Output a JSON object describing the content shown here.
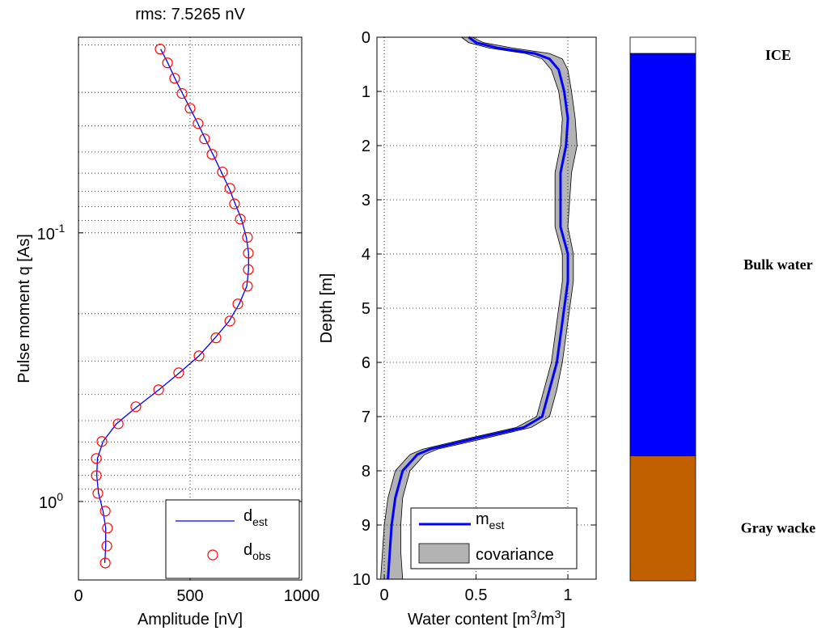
{
  "chart_data": [
    {
      "type": "scatter",
      "title": "rms: 7.5265 nV",
      "xlabel": "Amplitude [nV]",
      "ylabel": "Pulse moment q [As]",
      "xlim": [
        0,
        1000
      ],
      "xticks": [
        0,
        500,
        1000
      ],
      "ylim": [
        0.0187,
        1.96
      ],
      "log_y": true,
      "y_reversed": true,
      "yticks": [
        {
          "value": 0.1,
          "label": "10",
          "exponent": "-1"
        },
        {
          "value": 1,
          "label": "10",
          "exponent": "0"
        }
      ],
      "yminor": [
        0.02,
        0.03,
        0.04,
        0.05,
        0.06,
        0.07,
        0.08,
        0.09,
        0.2,
        0.3,
        0.4,
        0.5,
        0.6,
        0.7,
        0.8,
        0.9
      ],
      "grid": true,
      "legend": "lower right",
      "series": [
        {
          "name": "d",
          "name_sub": "est",
          "color": "#0000ff",
          "style": "line",
          "y": [
            0.0207,
            0.0233,
            0.0266,
            0.0303,
            0.0344,
            0.0392,
            0.0447,
            0.051,
            0.0594,
            0.0683,
            0.078,
            0.0889,
            0.104,
            0.119,
            0.137,
            0.158,
            0.184,
            0.213,
            0.246,
            0.287,
            0.332,
            0.384,
            0.444,
            0.514,
            0.598,
            0.692,
            0.801,
            0.933,
            1.086,
            1.256,
            1.465,
            1.694
          ],
          "x": [
            368,
            400,
            432,
            466,
            500,
            535,
            568,
            602,
            640,
            675,
            702,
            730,
            752,
            762,
            762,
            754,
            720,
            675,
            612,
            540,
            452,
            360,
            262,
            170,
            110,
            85,
            82,
            90,
            110,
            122,
            122,
            118
          ]
        },
        {
          "name": "d",
          "name_sub": "obs",
          "color": "#ff0000",
          "style": "marker",
          "y": [
            0.0207,
            0.0233,
            0.0266,
            0.0303,
            0.0344,
            0.0392,
            0.0447,
            0.051,
            0.0594,
            0.0683,
            0.078,
            0.0889,
            0.104,
            0.119,
            0.137,
            0.158,
            0.184,
            0.213,
            0.246,
            0.287,
            0.332,
            0.384,
            0.444,
            0.514,
            0.598,
            0.692,
            0.801,
            0.933,
            1.086,
            1.256,
            1.465,
            1.694
          ],
          "x": [
            366,
            399,
            431,
            464,
            500,
            536,
            565,
            598,
            645,
            678,
            699,
            725,
            757,
            761,
            761,
            757,
            714,
            678,
            616,
            540,
            449,
            359,
            257,
            178,
            105,
            80,
            80,
            87,
            120,
            130,
            127,
            120
          ]
        }
      ]
    },
    {
      "type": "line",
      "ylabel": "Depth [m]",
      "xlabel_parts": [
        {
          "text": "Water content [m"
        },
        {
          "text": "3",
          "sup": true
        },
        {
          "text": "/m"
        },
        {
          "text": "3",
          "sup": true
        },
        {
          "text": "]"
        }
      ],
      "xlim": [
        -0.04,
        1.154
      ],
      "xticks": [
        0,
        0.5,
        1
      ],
      "ylim": [
        0,
        10
      ],
      "yticks": [
        0,
        1,
        2,
        3,
        4,
        5,
        6,
        7,
        8,
        9,
        10
      ],
      "y_reversed": true,
      "grid": true,
      "legend": "lower right",
      "y": [
        0,
        0.1,
        0.2,
        0.3,
        0.4,
        0.6,
        1,
        1.5,
        2,
        2.5,
        3,
        3.5,
        4,
        4.5,
        5,
        5.5,
        6,
        6.5,
        7,
        7.2,
        7.4,
        7.6,
        7.7,
        8,
        8.5,
        9,
        9.5,
        10
      ],
      "band": {
        "name": "covariance",
        "color": "#b3b3b3",
        "lower": [
          0.42,
          0.46,
          0.57,
          0.77,
          0.86,
          0.91,
          0.95,
          0.97,
          0.96,
          0.93,
          0.93,
          0.93,
          0.97,
          0.97,
          0.95,
          0.93,
          0.91,
          0.87,
          0.83,
          0.72,
          0.46,
          0.21,
          0.14,
          0.06,
          0.02,
          0.0,
          -0.01,
          -0.02
        ],
        "upper": [
          0.48,
          0.54,
          0.7,
          0.9,
          0.97,
          1.0,
          1.02,
          1.04,
          1.05,
          1.02,
          1.01,
          1.0,
          1.03,
          1.03,
          1.01,
          0.99,
          0.97,
          0.94,
          0.9,
          0.8,
          0.55,
          0.29,
          0.22,
          0.14,
          0.1,
          0.09,
          0.09,
          0.1
        ]
      },
      "series": [
        {
          "name": "m",
          "name_sub": "est",
          "color": "#0000ff",
          "values": [
            0.46,
            0.5,
            0.62,
            0.82,
            0.9,
            0.95,
            0.98,
            1.0,
            0.99,
            0.96,
            0.96,
            0.96,
            1.0,
            1.0,
            0.98,
            0.96,
            0.94,
            0.9,
            0.86,
            0.76,
            0.5,
            0.25,
            0.18,
            0.1,
            0.06,
            0.04,
            0.03,
            0.02
          ]
        }
      ]
    },
    {
      "type": "layers",
      "ylim": [
        0,
        10
      ],
      "layers": [
        {
          "name": "ICE",
          "top": 0,
          "bottom": 0.3,
          "color": "#ffffff"
        },
        {
          "name": "Bulk water",
          "top": 0.3,
          "bottom": 7.7,
          "color": "#0000ff"
        },
        {
          "name": "Gray wacke",
          "top": 7.7,
          "bottom": 10,
          "color": "#c06000"
        }
      ]
    }
  ]
}
